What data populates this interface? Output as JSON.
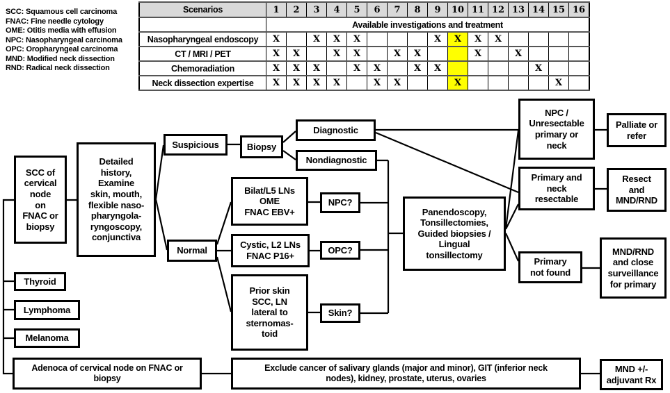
{
  "legend": {
    "items": [
      "SCC: Squamous cell carcinoma",
      "FNAC: Fine needle cytology",
      "OME: Otitis media with effusion",
      "NPC: Nasopharyngeal carcinoma",
      "OPC: Oropharyngeal carcinoma",
      "MND: Modified neck dissection",
      "RND: Radical neck dissection"
    ]
  },
  "table": {
    "corner_label": "Scenarios",
    "columns": [
      "1",
      "2",
      "3",
      "4",
      "5",
      "6",
      "7",
      "8",
      "9",
      "10",
      "11",
      "12",
      "13",
      "14",
      "15",
      "16"
    ],
    "span_label": "Available investigations and treatment",
    "mark": "X",
    "highlight_column": 10,
    "highlight_color": "#ffff00",
    "header_bg": "#d9d9d9",
    "rows": [
      {
        "label": "Nasopharyngeal endoscopy",
        "marks": [
          1,
          3,
          4,
          5,
          9,
          10,
          11,
          12
        ]
      },
      {
        "label": "CT / MRI / PET",
        "marks": [
          1,
          2,
          4,
          5,
          7,
          8,
          11,
          13
        ]
      },
      {
        "label": "Chemoradiation",
        "marks": [
          1,
          2,
          3,
          5,
          6,
          8,
          9,
          14
        ]
      },
      {
        "label": "Neck dissection expertise",
        "marks": [
          1,
          2,
          3,
          4,
          6,
          7,
          10,
          15
        ]
      }
    ]
  },
  "flowchart": {
    "boxes": {
      "scc": {
        "label": "SCC of\ncervical\nnode\non\nFNAC or\nbiopsy"
      },
      "history": {
        "label": "Detailed\nhistory,\nExamine\nskin, mouth,\nflexible naso-\npharyngola-\nryngoscopy,\nconjunctiva"
      },
      "suspicious": {
        "label": "Suspicious"
      },
      "biopsy": {
        "label": "Biopsy"
      },
      "diagnostic": {
        "label": "Diagnostic"
      },
      "nondiagnostic": {
        "label": "Nondiagnostic"
      },
      "bilat": {
        "label": "Bilat/L5 LNs\nOME\nFNAC EBV+"
      },
      "npc_q": {
        "label": "NPC?"
      },
      "normal": {
        "label": "Normal"
      },
      "cystic": {
        "label": "Cystic, L2 LNs\nFNAC P16+"
      },
      "opc_q": {
        "label": "OPC?"
      },
      "prior_skin": {
        "label": "Prior skin\nSCC, LN\nlateral to\nsternomas-\ntoid"
      },
      "skin_q": {
        "label": "Skin?"
      },
      "panendoscopy": {
        "label": "Panendoscopy,\nTonsillectomies,\nGuided biopsies /\nLingual\ntonsillectomy"
      },
      "npc_unresectable": {
        "label": "NPC /\nUnresectable\nprimary or\nneck"
      },
      "palliate": {
        "label": "Palliate or\nrefer"
      },
      "resectable": {
        "label": "Primary and\nneck\nresectable"
      },
      "resect": {
        "label": "Resect\nand\nMND/RND"
      },
      "not_found": {
        "label": "Primary\nnot found"
      },
      "surveillance": {
        "label": "MND/RND\nand close\nsurveillance\nfor primary"
      },
      "thyroid": {
        "label": "Thyroid"
      },
      "lymphoma": {
        "label": "Lymphoma"
      },
      "melanoma": {
        "label": "Melanoma"
      },
      "adenoca": {
        "label": "Adenoca of cervical node on FNAC or\nbiopsy"
      },
      "exclude": {
        "label": "Exclude cancer of salivary glands (major and minor), GIT (inferior neck\nnodes), kidney, prostate, uterus, ovaries"
      },
      "mnd_adjuvant": {
        "label": "MND +/-\nadjuvant Rx"
      }
    }
  }
}
